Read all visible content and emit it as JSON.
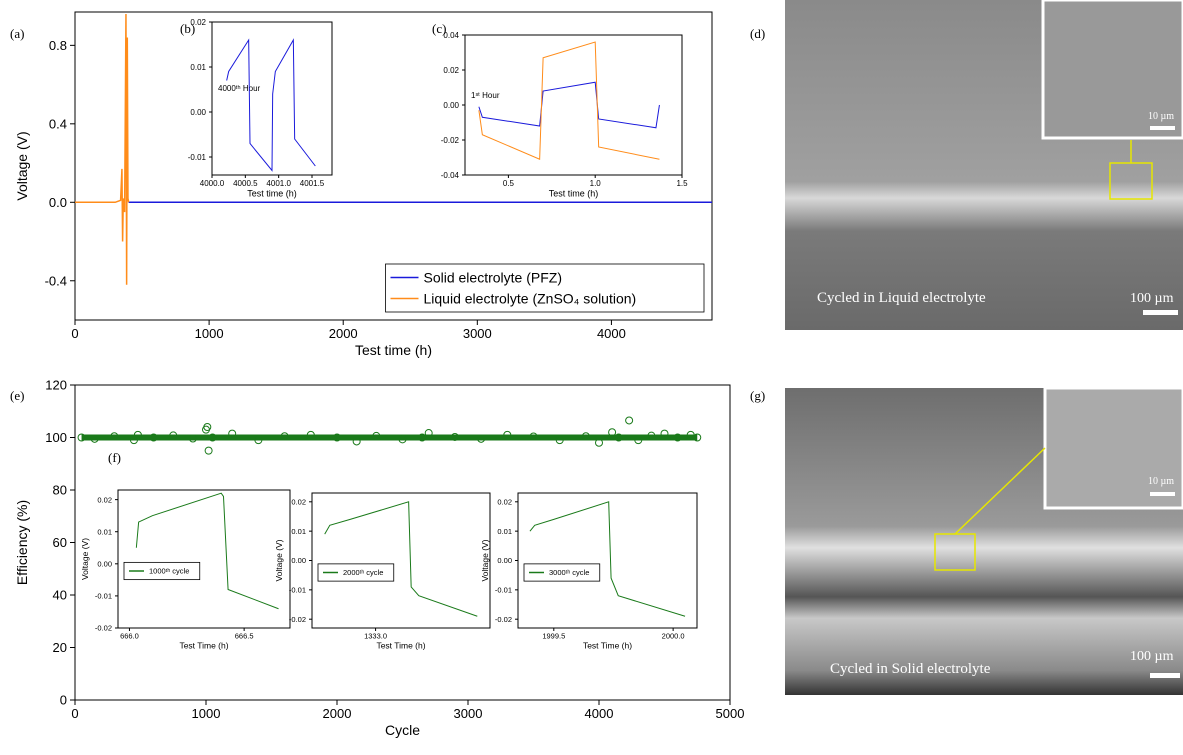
{
  "chart_data": [
    {
      "type": "line",
      "panel_label": "(a)",
      "x_label": "Test time (h)",
      "y_label": "Voltage (V)",
      "xlim": [
        0,
        4750
      ],
      "xticks": [
        0,
        1000,
        2000,
        3000,
        4000
      ],
      "ylim": [
        -0.6,
        0.97
      ],
      "yticks": [
        -0.4,
        {
          "value": 0,
          "label": "0.0"
        },
        0.4,
        0.8
      ],
      "legend": "lower right",
      "series": [
        {
          "name": "Solid electrolyte (PFZ)",
          "color": "#1a1adb",
          "x": [
            400,
            1000,
            2000,
            3000,
            4000,
            4750
          ],
          "values": [
            0,
            0,
            0,
            0,
            0,
            0
          ]
        },
        {
          "name": "Liquid electrolyte (ZnSO₄ solution)",
          "color": "#ff8c1a",
          "x": [
            0,
            100,
            200,
            300,
            340,
            350,
            355,
            360,
            370,
            380,
            385,
            390,
            395,
            400
          ],
          "values": [
            0,
            0,
            0,
            0,
            0.01,
            0.17,
            -0.2,
            0.02,
            -0.05,
            0.96,
            -0.42,
            0.84,
            0.02,
            0
          ]
        }
      ]
    },
    {
      "type": "line",
      "panel_label": "(b)",
      "x_label": "Test time (h)",
      "annotation": "4000ᵗʰ Hour",
      "xlim": [
        4000,
        4001.8
      ],
      "xticks": [
        {
          "value": 4000,
          "label": "4000.0"
        },
        4000.5,
        {
          "value": 4001,
          "label": "4001.0"
        },
        4001.5
      ],
      "ylim": [
        -0.014,
        0.02
      ],
      "yticks": [
        -0.01,
        {
          "value": 0,
          "label": "0.00"
        },
        0.01,
        0.02
      ],
      "series": [
        {
          "color": "#1a1adb",
          "x": [
            4000.22,
            4000.25,
            4000.55,
            4000.57,
            4000.9,
            4000.91,
            4000.95,
            4001.22,
            4001.24,
            4001.55
          ],
          "values": [
            0.007,
            0.009,
            0.016,
            -0.007,
            -0.013,
            0.004,
            0.009,
            0.016,
            -0.006,
            -0.012
          ]
        }
      ]
    },
    {
      "type": "line",
      "panel_label": "(c)",
      "x_label": "Test time (h)",
      "annotation": "1ˢᵗ Hour",
      "xlim": [
        0.25,
        1.5
      ],
      "xticks": [
        0.5,
        {
          "value": 1,
          "label": "1.0"
        },
        1.5
      ],
      "ylim": [
        -0.04,
        0.04
      ],
      "yticks": [
        -0.04,
        -0.02,
        {
          "value": 0,
          "label": "0.00"
        },
        0.02,
        0.04
      ],
      "series": [
        {
          "color": "#1a1adb",
          "x": [
            0.33,
            0.35,
            0.68,
            0.7,
            1.0,
            1.02,
            1.35,
            1.37
          ],
          "values": [
            -0.001,
            -0.007,
            -0.012,
            0.008,
            0.013,
            -0.008,
            -0.013,
            0
          ]
        },
        {
          "color": "#ff8c1a",
          "x": [
            0.33,
            0.35,
            0.68,
            0.7,
            1.0,
            1.02,
            1.37
          ],
          "values": [
            -0.003,
            -0.017,
            -0.031,
            0.027,
            0.036,
            -0.024,
            -0.031
          ]
        }
      ]
    },
    {
      "type": "scatter",
      "panel_label": "(e)",
      "x_label": "Cycle",
      "y_label": "Efficiency (%)",
      "xlim": [
        0,
        5000
      ],
      "xticks": [
        0,
        1000,
        2000,
        3000,
        4000,
        5000
      ],
      "ylim": [
        0,
        120
      ],
      "yticks": [
        0,
        20,
        40,
        60,
        80,
        100,
        120
      ],
      "series": [
        {
          "color": "#1a7a1a",
          "x": [
            50,
            150,
            300,
            450,
            480,
            600,
            750,
            900,
            1000,
            1010,
            1020,
            1050,
            1200,
            1400,
            1600,
            1800,
            2000,
            2150,
            2300,
            2500,
            2650,
            2700,
            2900,
            3100,
            3300,
            3500,
            3700,
            3900,
            4000,
            4100,
            4150,
            4230,
            4300,
            4400,
            4500,
            4600,
            4700,
            4750
          ],
          "values": [
            100,
            99.5,
            100.5,
            99,
            101,
            100,
            100.8,
            99.6,
            103,
            104,
            95,
            100,
            101.5,
            99,
            100.5,
            101,
            100,
            98.5,
            100.6,
            99.3,
            100,
            101.7,
            100.2,
            99.5,
            101,
            100.4,
            99,
            100.5,
            98,
            102,
            100,
            106.5,
            99,
            100.7,
            101.5,
            100,
            101,
            100
          ]
        }
      ]
    },
    {
      "type": "line",
      "panel_label": "(f)",
      "x_label": "Test Time (h)",
      "y_label": "Voltage (V)",
      "legend": "center left",
      "xlim": [
        665.95,
        666.7
      ],
      "xticks": [
        {
          "value": 666,
          "label": "666.0"
        },
        666.5
      ],
      "ylim": [
        -0.02,
        0.023
      ],
      "yticks": [
        -0.02,
        -0.01,
        {
          "value": 0,
          "label": "0.00"
        },
        0.01,
        0.02
      ],
      "series": [
        {
          "name": "1000ᵗʰ cycle",
          "color": "#1a7a1a",
          "x": [
            666.03,
            666.04,
            666.1,
            666.4,
            666.41,
            666.43,
            666.65
          ],
          "values": [
            0.005,
            0.013,
            0.015,
            0.022,
            0.021,
            -0.008,
            -0.014
          ]
        }
      ]
    },
    {
      "type": "line",
      "x_label": "Test Time (h)",
      "y_label": "Voltage (V)",
      "legend": "center left",
      "xlim": [
        1332.75,
        1333.45
      ],
      "xticks": [
        {
          "value": 1333,
          "label": "1333.0"
        }
      ],
      "ylim": [
        -0.023,
        0.023
      ],
      "yticks": [
        -0.02,
        -0.01,
        {
          "value": 0,
          "label": "0.00"
        },
        0.01,
        0.02
      ],
      "series": [
        {
          "name": "2000ᵗʰ cycle",
          "color": "#1a7a1a",
          "x": [
            1332.8,
            1332.82,
            1332.9,
            1333.13,
            1333.14,
            1333.17,
            1333.4
          ],
          "values": [
            0.009,
            0.012,
            0.014,
            0.02,
            -0.009,
            -0.012,
            -0.019
          ]
        }
      ]
    },
    {
      "type": "line",
      "x_label": "Test Time (h)",
      "y_label": "Voltage (V)",
      "legend": "center left",
      "xlim": [
        1999.35,
        2000.1
      ],
      "xticks": [
        1999.5,
        {
          "value": 2000,
          "label": "2000.0"
        }
      ],
      "ylim": [
        -0.023,
        0.023
      ],
      "yticks": [
        -0.02,
        -0.01,
        {
          "value": 0,
          "label": "0.00"
        },
        0.01,
        0.02
      ],
      "series": [
        {
          "name": "3000ᵗʰ cycle",
          "color": "#1a7a1a",
          "x": [
            1999.4,
            1999.42,
            1999.5,
            1999.73,
            1999.74,
            1999.77,
            2000.05
          ],
          "values": [
            0.01,
            0.012,
            0.014,
            0.02,
            -0.006,
            -0.012,
            -0.019
          ]
        }
      ]
    }
  ],
  "images": [
    {
      "panel_label": "(d)",
      "caption": "Cycled in Liquid electrolyte",
      "scale": "100 µm",
      "inset_scale": "10 µm"
    },
    {
      "panel_label": "(g)",
      "caption": "Cycled in Solid electrolyte",
      "scale": "100 µm",
      "inset_scale": "10 µm"
    }
  ]
}
